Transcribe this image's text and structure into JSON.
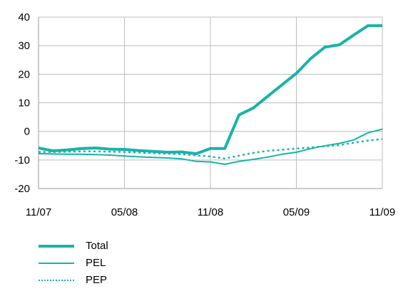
{
  "chart_data": {
    "type": "line",
    "title": "",
    "xlabel": "",
    "ylabel": "",
    "ylim": [
      -20,
      40
    ],
    "yticks": [
      -20,
      -10,
      0,
      10,
      20,
      30,
      40
    ],
    "xticks": [
      "11/07",
      "05/08",
      "11/08",
      "05/09",
      "11/09"
    ],
    "grid": true,
    "legend_position": "bottom-left",
    "colors": {
      "series": "#18b3a8",
      "grid": "#bdbdbd",
      "axis": "#999999"
    },
    "series": [
      {
        "name": "Total",
        "style": "thick-solid",
        "values": [
          -5.8,
          -6.8,
          -6.5,
          -6.0,
          -5.8,
          -6.2,
          -6.3,
          -6.7,
          -7.0,
          -7.3,
          -7.2,
          -7.8,
          -6.0,
          -6.0,
          5.8,
          8.2,
          12.3,
          16.3,
          20.3,
          25.5,
          29.5,
          30.3,
          33.7,
          37.0,
          37.0
        ]
      },
      {
        "name": "PEL",
        "style": "thin-solid",
        "values": [
          -7.8,
          -7.9,
          -8.0,
          -8.0,
          -8.1,
          -8.3,
          -8.6,
          -8.9,
          -9.1,
          -9.3,
          -9.6,
          -10.5,
          -10.7,
          -11.5,
          -10.5,
          -9.8,
          -9.0,
          -8.0,
          -7.3,
          -6.0,
          -5.0,
          -4.2,
          -3.0,
          -0.5,
          0.8
        ]
      },
      {
        "name": "PEP",
        "style": "dotted",
        "values": [
          -7.2,
          -7.2,
          -7.1,
          -7.0,
          -7.0,
          -7.1,
          -7.2,
          -7.4,
          -7.6,
          -7.8,
          -8.0,
          -8.4,
          -8.8,
          -9.5,
          -8.5,
          -7.5,
          -6.8,
          -6.4,
          -6.0,
          -5.6,
          -5.2,
          -4.8,
          -4.0,
          -3.2,
          -2.7
        ]
      }
    ]
  }
}
